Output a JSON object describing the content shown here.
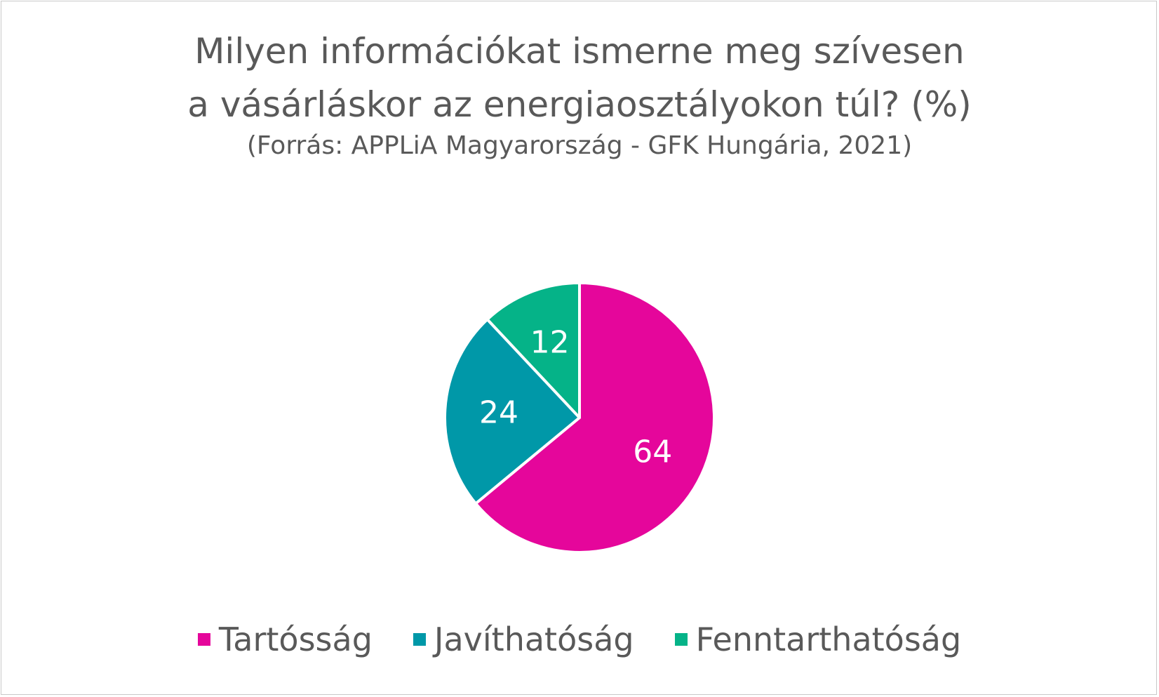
{
  "chart_data": {
    "type": "pie",
    "title": "Milyen információkat ismerne meg szívesen a vásárláskor az energiaosztályokon túl? (%)",
    "title_lines": [
      "Milyen információkat ismerne meg szívesen",
      "a vásárláskor az energiaosztályokon túl? (%)"
    ],
    "subtitle": "(Forrás: APPLiA Magyarország - GFK Hungária, 2021)",
    "categories": [
      "Tartósság",
      "Javíthatóság",
      "Fenntarthatóság"
    ],
    "values": [
      64,
      24,
      12
    ],
    "data_labels": [
      "64",
      "24",
      "12"
    ],
    "colors": [
      "#e5069b",
      "#0098a8",
      "#05b388"
    ],
    "legend_placement": "bottom"
  }
}
